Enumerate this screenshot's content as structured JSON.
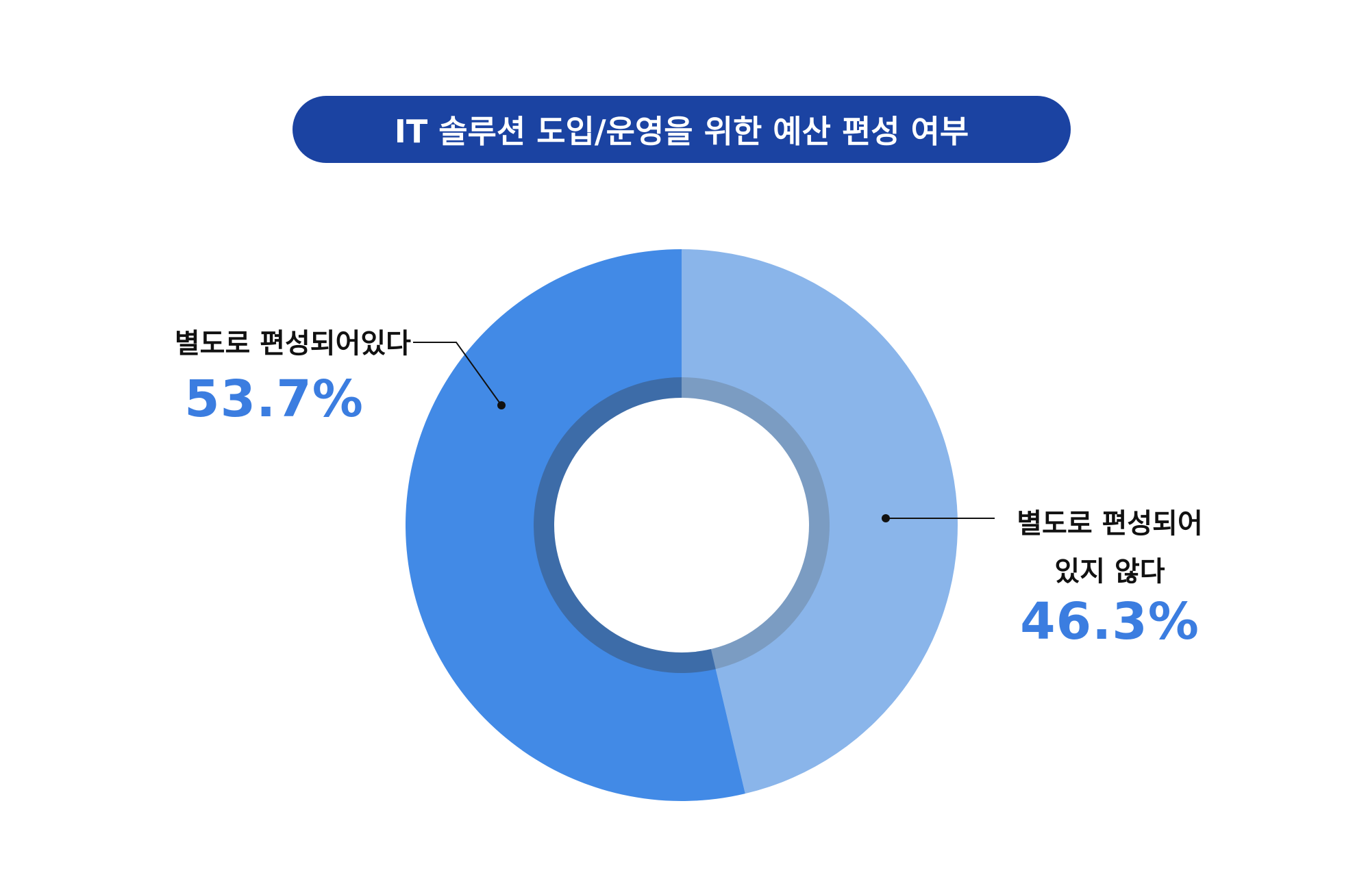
{
  "title": "IT 솔루션 도입/운영을 위한 예산 편성 여부",
  "colors": {
    "title_bg": "#1b43a2",
    "slice_main": "#428ae6",
    "slice_secondary": "#8ab5ea",
    "inner_ring_main": "#3d6ca8",
    "inner_ring_secondary": "#7b9cc2",
    "pct_text": "#3b7de0"
  },
  "chart_data": {
    "type": "pie",
    "style": "donut",
    "title": "IT 솔루션 도입/운영을 위한 예산 편성 여부",
    "categories": [
      "별도로 편성되어있다",
      "별도로 편성되어 있지 않다"
    ],
    "values": [
      53.7,
      46.3
    ],
    "unit": "%",
    "labels": {
      "yes": {
        "text": "별도로 편성되어있다",
        "value": "53.7%"
      },
      "no": {
        "line1": "별도로 편성되어",
        "line2": "있지 않다",
        "value": "46.3%"
      }
    },
    "legend": "none"
  }
}
